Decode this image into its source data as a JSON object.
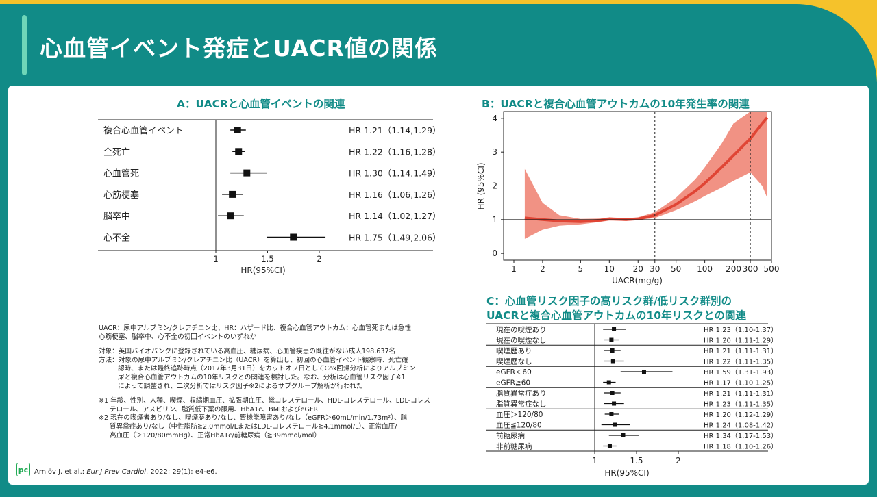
{
  "slide_title": "心血管イベント発症とUACR値の関係",
  "panel_a_title": "A：UACRと心血管イベントの関連",
  "panel_b_title": "B：UACRと複合心血管アウトカムの10年発生率の関連",
  "panel_c_title_line1": "C：心血管リスク因子の高リスク群/低リスク群別の",
  "panel_c_title_line2": "UACRと複合心血管アウトカムの10年リスクとの関連",
  "notes": {
    "abbrev_line1": "UACR：尿中アルブミン/クレアチニン比、HR：ハザード比、複合心血管アウトカム：心血管死または急性",
    "abbrev_line2": "心筋梗塞、脳卒中、心不全の初回イベントのいずれか",
    "subject": "対象：英国バイオバンクに登録されている高血圧、糖尿病、心血管疾患の既往がない成人198,637名",
    "method1": "方法：対象の尿中アルブミン/クレアチニン比（UACR）を算出し、初回の心血管イベント観察時、死亡確",
    "method2": "認時、または最終追跡時点（2017年3月31日）をカットオフ日としてCox回帰分析によりアルブミン",
    "method3": "尿と複合心血管アウトカムの10年リスクとの関連を検討した。なお、分析は心血管リスク因子※1",
    "method4": "によって調整され、二次分析ではリスク因子※2によるサブグループ解析が行われた",
    "fn1a": "※1 年齢、性別、人種、喫煙、収縮期血圧、拡張期血圧、総コレステロール、HDL-コレステロール、LDL-コレス",
    "fn1b": "テロール、アスピリン、脂質低下薬の服用、HbA1c、BMIおよびeGFR",
    "fn2a": "※2 現在の喫煙者あり/なし、喫煙歴あり/なし、腎機能障害あり/なし（eGFR＞60mL/min/1.73m²）、脂",
    "fn2b": "質異常症あり/なし（中性脂肪≧2.0mmol/LまたはLDL-コレステロール≧4.1mmol/L）、正常血圧/",
    "fn2c": "高血圧（＞120/80mmHg）、正常HbA1c/前糖尿病（≧39mmol/mol）"
  },
  "reference_authors": "Ärnlöv J, et al.: ",
  "reference_journal": "Eur J Prev Cardiol",
  "reference_detail": ". 2022; 29(1): e4-e6.",
  "logo_text": "pc",
  "colors": {
    "teal": "#118b87",
    "yellow": "#f5c22b",
    "band": "#ee7f6f",
    "line": "#e04535"
  },
  "chart_data": [
    {
      "type": "forest",
      "panel": "A",
      "xlabel": "HR(95%CI)",
      "xlim": [
        0.8,
        2.2
      ],
      "xticks": [
        "1",
        "1.5",
        "2"
      ],
      "rows": [
        {
          "label": "複合心血管イベント",
          "hr": 1.21,
          "lo": 1.14,
          "hi": 1.29,
          "text": "HR 1.21（1.14,1.29）"
        },
        {
          "label": "全死亡",
          "hr": 1.22,
          "lo": 1.16,
          "hi": 1.28,
          "text": "HR 1.22（1.16,1.28）"
        },
        {
          "label": "心血管死",
          "hr": 1.3,
          "lo": 1.14,
          "hi": 1.49,
          "text": "HR 1.30（1.14,1.49）"
        },
        {
          "label": "心筋梗塞",
          "hr": 1.16,
          "lo": 1.06,
          "hi": 1.26,
          "text": "HR 1.16（1.06,1.26）"
        },
        {
          "label": "脳卒中",
          "hr": 1.14,
          "lo": 1.02,
          "hi": 1.27,
          "text": "HR 1.14（1.02,1.27）"
        },
        {
          "label": "心不全",
          "hr": 1.75,
          "lo": 1.49,
          "hi": 2.06,
          "text": "HR 1.75（1.49,2.06）"
        }
      ]
    },
    {
      "type": "line",
      "panel": "B",
      "xlabel": "UACR(mg/g)",
      "ylabel": "HR (95%CI)",
      "xscale": "log",
      "xlim": [
        1,
        500
      ],
      "ylim": [
        -0.2,
        4.2
      ],
      "xticks": [
        "1",
        "2",
        "5",
        "10",
        "20",
        "30",
        "50",
        "100",
        "200",
        "300",
        "500"
      ],
      "yticks": [
        "0",
        "1",
        "2",
        "3",
        "4"
      ],
      "reference_line_y": 1,
      "reference_lines_x": [
        30,
        300
      ],
      "x": [
        1.3,
        2,
        3,
        5,
        8,
        10,
        15,
        20,
        30,
        50,
        80,
        100,
        150,
        200,
        300,
        400,
        450
      ],
      "hr": [
        1.05,
        1.0,
        0.96,
        0.94,
        0.98,
        1.02,
        1.0,
        1.02,
        1.13,
        1.45,
        1.85,
        2.08,
        2.55,
        2.9,
        3.4,
        3.85,
        4.02
      ],
      "lower": [
        0.43,
        0.7,
        0.82,
        0.86,
        0.93,
        0.97,
        0.96,
        0.99,
        1.05,
        1.28,
        1.55,
        1.7,
        1.95,
        2.15,
        2.4,
        2.0,
        1.65
      ],
      "upper": [
        2.5,
        1.5,
        1.13,
        1.02,
        1.03,
        1.07,
        1.04,
        1.07,
        1.22,
        1.65,
        2.2,
        2.55,
        3.25,
        3.85,
        4.2,
        4.2,
        4.2
      ]
    },
    {
      "type": "forest",
      "panel": "C",
      "xlabel": "HR(95%CI)",
      "xlim": [
        0.68,
        2.02
      ],
      "xticks": [
        "1",
        "1.5",
        "2"
      ],
      "rows": [
        {
          "label": "現在の喫煙あり",
          "hr": 1.23,
          "lo": 1.1,
          "hi": 1.37,
          "text": "HR 1.23（1.10-1.37）"
        },
        {
          "label": "現在の喫煙なし",
          "hr": 1.2,
          "lo": 1.11,
          "hi": 1.29,
          "text": "HR 1.20（1.11-1.29）"
        },
        {
          "label": "喫煙歴あり",
          "hr": 1.21,
          "lo": 1.11,
          "hi": 1.31,
          "text": "HR 1.21（1.11-1.31）"
        },
        {
          "label": "喫煙歴なし",
          "hr": 1.22,
          "lo": 1.11,
          "hi": 1.35,
          "text": "HR 1.22（1.11-1.35）"
        },
        {
          "label": "eGFR＜60",
          "hr": 1.59,
          "lo": 1.31,
          "hi": 1.93,
          "text": "HR 1.59（1.31-1.93）"
        },
        {
          "label": "eGFR≧60",
          "hr": 1.17,
          "lo": 1.1,
          "hi": 1.25,
          "text": "HR 1.17（1.10-1.25）"
        },
        {
          "label": "脂質異常症あり",
          "hr": 1.21,
          "lo": 1.11,
          "hi": 1.31,
          "text": "HR 1.21（1.11-1.31）"
        },
        {
          "label": "脂質異常症なし",
          "hr": 1.23,
          "lo": 1.11,
          "hi": 1.35,
          "text": "HR 1.23（1.11-1.35）"
        },
        {
          "label": "血圧＞120/80",
          "hr": 1.2,
          "lo": 1.12,
          "hi": 1.29,
          "text": "HR 1.20（1.12-1.29）"
        },
        {
          "label": "血圧≦120/80",
          "hr": 1.24,
          "lo": 1.08,
          "hi": 1.42,
          "text": "HR 1.24（1.08-1.42）"
        },
        {
          "label": "前糖尿病",
          "hr": 1.34,
          "lo": 1.17,
          "hi": 1.53,
          "text": "HR 1.34（1.17-1.53）"
        },
        {
          "label": "非前糖尿病",
          "hr": 1.18,
          "lo": 1.1,
          "hi": 1.26,
          "text": "HR 1.18（1.10-1.26）"
        }
      ]
    }
  ]
}
